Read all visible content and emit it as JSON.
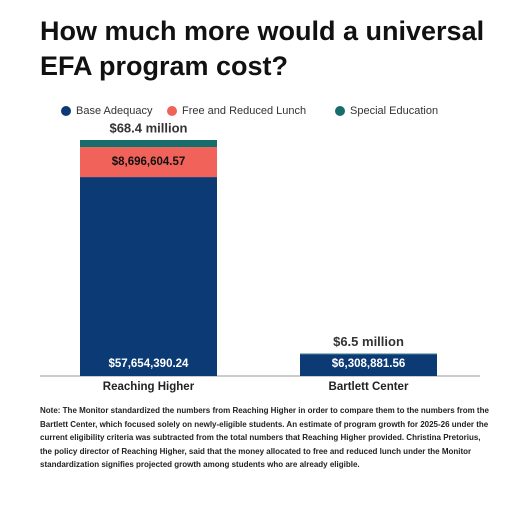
{
  "chart_data": {
    "type": "stacked-bar",
    "title": "How much more would a universal EFA program cost?",
    "categories": [
      "Reaching Higher",
      "Bartlett Center"
    ],
    "series": [
      {
        "name": "Base Adequacy",
        "color": "#0b3a75",
        "values": [
          57654390.24,
          6308881.56
        ],
        "value_labels": [
          "$57,654,390.24",
          "$6,308,881.56"
        ]
      },
      {
        "name": "Free and Reduced Lunch",
        "color": "#f0625a",
        "values": [
          8696604.57,
          0
        ],
        "value_labels": [
          "$8,696,604.57",
          null
        ]
      },
      {
        "name": "Special Education",
        "color": "#176c6c",
        "values": [
          2049005.19,
          191118.44
        ],
        "value_labels": [
          null,
          null
        ]
      }
    ],
    "totals": [
      68400000,
      6500000
    ],
    "total_labels": [
      "$68.4 million",
      "$6.5 million"
    ],
    "legend": "top",
    "note": "Note: The Monitor standardized the numbers from Reaching Higher in order to compare them to the numbers from the Bartlett Center, which focused solely on newly-eligible students. An estimate of program growth for 2025-26 under the current eligibility criteria was subtracted from the total numbers that Reaching Higher provided. Christina Pretorius, the policy director of Reaching Higher, said that the money allocated to free and reduced lunch under the Monitor standardization signifies projected growth among students who are already eligible."
  }
}
